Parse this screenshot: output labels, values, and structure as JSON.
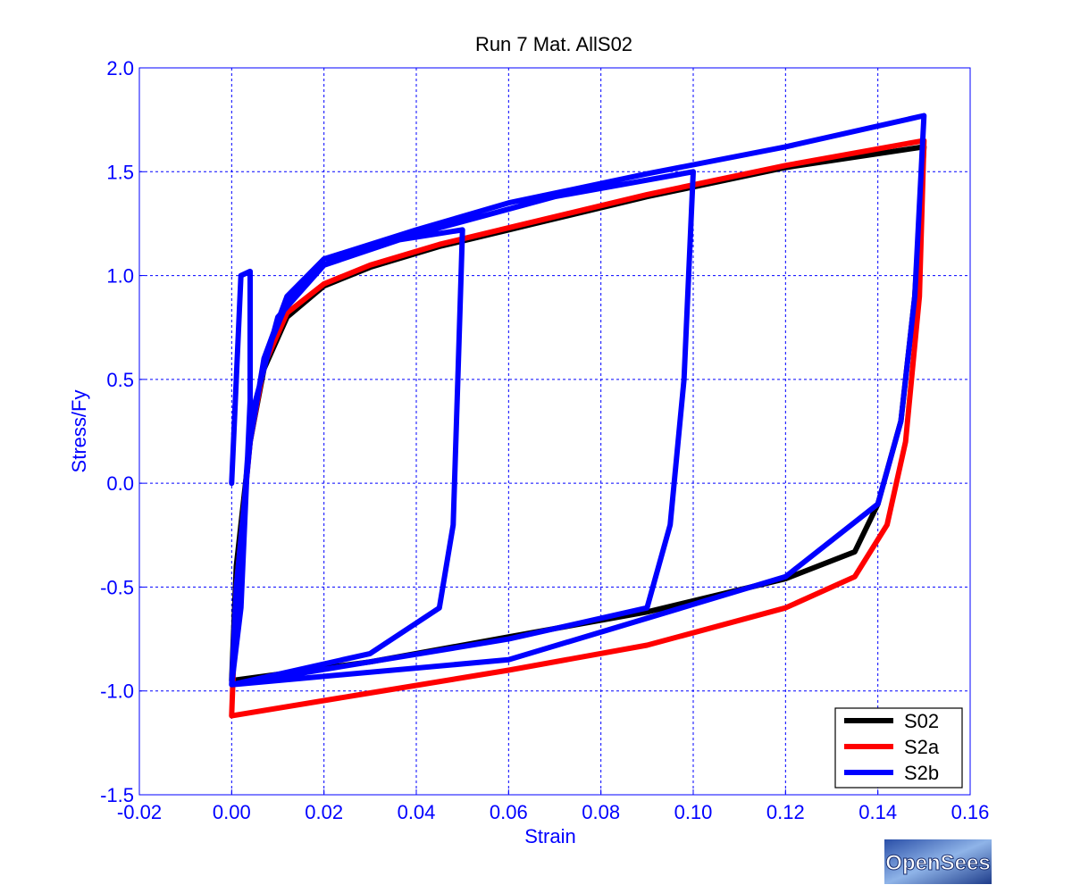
{
  "chart_data": {
    "type": "line",
    "title": "Run 7   Mat. AllS02",
    "xlabel": "Strain",
    "ylabel": "Stress/Fy",
    "xlim": [
      -0.02,
      0.16
    ],
    "ylim": [
      -1.5,
      2.0
    ],
    "xticks": [
      "-0.02",
      "0.00",
      "0.02",
      "0.04",
      "0.06",
      "0.08",
      "0.10",
      "0.12",
      "0.14",
      "0.16"
    ],
    "yticks": [
      "-1.5",
      "-1.0",
      "-0.5",
      "0.0",
      "0.5",
      "1.0",
      "1.5",
      "2.0"
    ],
    "grid": true,
    "legend_position": "bottom-right",
    "series": [
      {
        "name": "S02",
        "color": "#000000",
        "points": [
          [
            0.0,
            -0.95
          ],
          [
            0.03,
            -0.86
          ],
          [
            0.06,
            -0.74
          ],
          [
            0.09,
            -0.62
          ],
          [
            0.12,
            -0.46
          ],
          [
            0.135,
            -0.33
          ],
          [
            0.14,
            -0.1
          ],
          [
            0.145,
            0.3
          ],
          [
            0.148,
            0.9
          ],
          [
            0.15,
            1.62
          ],
          [
            0.12,
            1.52
          ],
          [
            0.09,
            1.38
          ],
          [
            0.06,
            1.22
          ],
          [
            0.045,
            1.14
          ],
          [
            0.03,
            1.04
          ],
          [
            0.02,
            0.95
          ],
          [
            0.012,
            0.8
          ],
          [
            0.007,
            0.55
          ],
          [
            0.004,
            0.2
          ],
          [
            0.001,
            -0.4
          ],
          [
            0.0,
            -0.95
          ]
        ]
      },
      {
        "name": "S2a",
        "color": "#ff0000",
        "points": [
          [
            0.0,
            -1.12
          ],
          [
            0.03,
            -1.01
          ],
          [
            0.06,
            -0.9
          ],
          [
            0.09,
            -0.78
          ],
          [
            0.12,
            -0.6
          ],
          [
            0.135,
            -0.45
          ],
          [
            0.142,
            -0.2
          ],
          [
            0.146,
            0.2
          ],
          [
            0.149,
            0.9
          ],
          [
            0.15,
            1.65
          ],
          [
            0.12,
            1.53
          ],
          [
            0.09,
            1.39
          ],
          [
            0.06,
            1.23
          ],
          [
            0.045,
            1.15
          ],
          [
            0.03,
            1.05
          ],
          [
            0.02,
            0.96
          ],
          [
            0.012,
            0.82
          ],
          [
            0.007,
            0.57
          ],
          [
            0.004,
            0.2
          ],
          [
            0.001,
            -0.5
          ],
          [
            0.0,
            -1.12
          ]
        ]
      },
      {
        "name": "S2b",
        "color": "#0000ff",
        "points": [
          [
            0.0,
            0.0
          ],
          [
            0.002,
            1.0
          ],
          [
            0.004,
            1.02
          ],
          [
            0.004,
            0.4
          ],
          [
            0.002,
            -0.6
          ],
          [
            0.0,
            -0.97
          ],
          [
            0.03,
            -0.82
          ],
          [
            0.045,
            -0.6
          ],
          [
            0.048,
            -0.2
          ],
          [
            0.049,
            0.5
          ],
          [
            0.05,
            1.22
          ],
          [
            0.03,
            1.15
          ],
          [
            0.02,
            1.05
          ],
          [
            0.012,
            0.87
          ],
          [
            0.007,
            0.6
          ],
          [
            0.004,
            0.2
          ],
          [
            0.001,
            -0.5
          ],
          [
            0.0,
            -0.97
          ],
          [
            0.06,
            -0.75
          ],
          [
            0.09,
            -0.6
          ],
          [
            0.095,
            -0.2
          ],
          [
            0.098,
            0.5
          ],
          [
            0.1,
            1.5
          ],
          [
            0.07,
            1.38
          ],
          [
            0.04,
            1.2
          ],
          [
            0.02,
            1.05
          ],
          [
            0.01,
            0.8
          ],
          [
            0.004,
            0.3
          ],
          [
            0.0,
            -0.97
          ],
          [
            0.06,
            -0.85
          ],
          [
            0.12,
            -0.45
          ],
          [
            0.14,
            -0.1
          ],
          [
            0.145,
            0.3
          ],
          [
            0.148,
            0.9
          ],
          [
            0.15,
            1.77
          ],
          [
            0.12,
            1.62
          ],
          [
            0.09,
            1.49
          ],
          [
            0.06,
            1.35
          ],
          [
            0.04,
            1.22
          ],
          [
            0.02,
            1.08
          ],
          [
            0.012,
            0.9
          ],
          [
            0.007,
            0.6
          ],
          [
            0.004,
            0.2
          ],
          [
            0.001,
            -0.5
          ],
          [
            0.0,
            -0.97
          ]
        ]
      }
    ]
  },
  "logo": {
    "text": "OpenSees"
  }
}
